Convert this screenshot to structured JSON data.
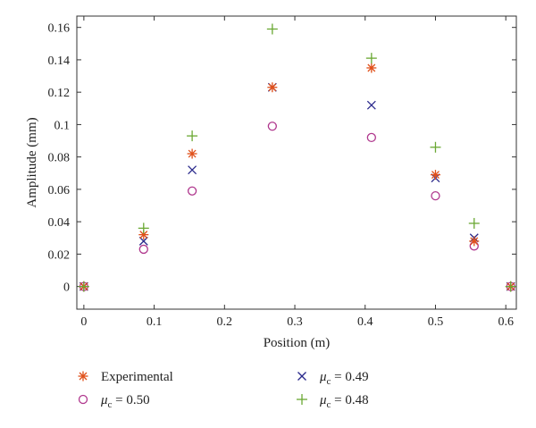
{
  "chart_data": {
    "type": "scatter",
    "xlabel": "Position (m)",
    "ylabel": "Amplitude (mm)",
    "xlim": [
      -0.01,
      0.615
    ],
    "ylim": [
      -0.014,
      0.167
    ],
    "xticks": [
      0,
      0.1,
      0.2,
      0.3,
      0.4,
      0.5,
      0.6
    ],
    "xtick_labels": [
      "0",
      "0.1",
      "0.2",
      "0.3",
      "0.4",
      "0.5",
      "0.6"
    ],
    "yticks": [
      0,
      0.02,
      0.04,
      0.06,
      0.08,
      0.1,
      0.12,
      0.14,
      0.16
    ],
    "ytick_labels": [
      "0",
      "0.02",
      "0.04",
      "0.06",
      "0.08",
      "0.1",
      "0.12",
      "0.14",
      "0.16"
    ],
    "grid": false,
    "legend_position": "bottom",
    "series": [
      {
        "name": "Experimental",
        "marker": "asterisk",
        "color": "#e0501a",
        "x": [
          0,
          0.085,
          0.154,
          0.268,
          0.409,
          0.5,
          0.555,
          0.607
        ],
        "y": [
          0,
          0.032,
          0.082,
          0.123,
          0.135,
          0.069,
          0.028,
          0
        ]
      },
      {
        "name_symbol": "μ",
        "name_subscript": "c",
        "name_suffix": " = 0.49",
        "marker": "x",
        "color": "#2b2a8c",
        "x": [
          0,
          0.085,
          0.154,
          0.268,
          0.409,
          0.5,
          0.555,
          0.607
        ],
        "y": [
          0,
          0.028,
          0.072,
          0.123,
          0.112,
          0.067,
          0.03,
          0
        ]
      },
      {
        "name_symbol": "μ",
        "name_subscript": "c",
        "name_suffix": " = 0.50",
        "marker": "circle",
        "color": "#b0388e",
        "x": [
          0,
          0.085,
          0.154,
          0.268,
          0.409,
          0.5,
          0.555,
          0.607
        ],
        "y": [
          0,
          0.023,
          0.059,
          0.099,
          0.092,
          0.056,
          0.025,
          0
        ]
      },
      {
        "name_symbol": "μ",
        "name_subscript": "c",
        "name_suffix": " = 0.48",
        "marker": "plus",
        "color": "#6aa833",
        "x": [
          0,
          0.085,
          0.154,
          0.268,
          0.409,
          0.5,
          0.555,
          0.607
        ],
        "y": [
          0,
          0.036,
          0.093,
          0.159,
          0.141,
          0.086,
          0.039,
          0
        ]
      }
    ]
  }
}
